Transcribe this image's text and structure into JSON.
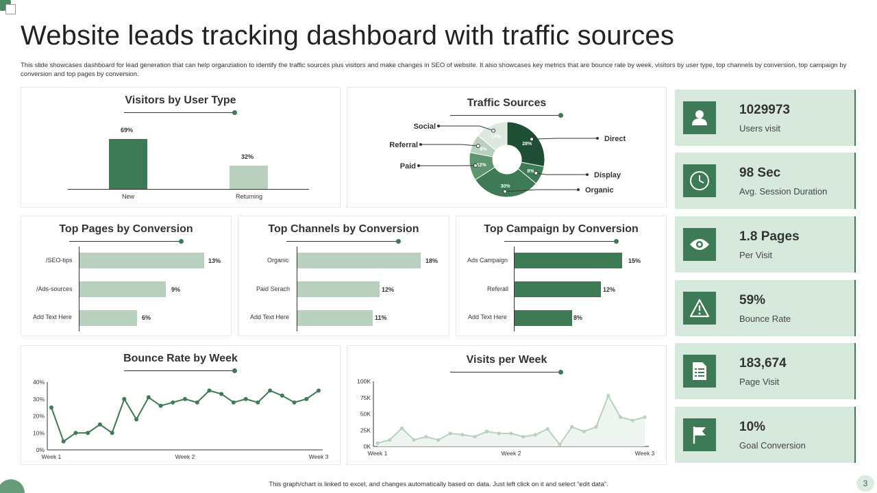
{
  "page": {
    "title": "Website leads tracking dashboard with traffic sources",
    "description": "This slide showcases dashboard for lead generation that can help organziation to identify the traffic sources plus visitors and make changes in SEO  of website. It also showcases key metrics that are bounce rate by week, visitors by user type, top channels by conversion, top campaign  by conversion and top pages by conversion.",
    "footer": "This graph/chart is linked to excel, and changes automatically based on data. Just left click on it and select “edit data”.",
    "page_number": "3"
  },
  "visitors": {
    "title": "Visitors by User Type",
    "items": [
      {
        "label": "New",
        "value_label": "69%"
      },
      {
        "label": "Returning",
        "value_label": "32%"
      }
    ]
  },
  "traffic": {
    "title": "Traffic Sources",
    "slices": [
      {
        "name": "Direct",
        "label": "28%"
      },
      {
        "name": "Display",
        "label": "8%"
      },
      {
        "name": "Organic",
        "label": "30%"
      },
      {
        "name": "Paid",
        "label": "12%"
      },
      {
        "name": "Referral",
        "label": "8%"
      },
      {
        "name": "Social",
        "label": "14%"
      }
    ]
  },
  "top_pages": {
    "title": "Top Pages by Conversion",
    "items": [
      {
        "label": "/SEO-tips",
        "value_label": "13%"
      },
      {
        "label": "/Ads-sources",
        "value_label": "9%"
      },
      {
        "label": "Add Text Here",
        "value_label": "6%"
      }
    ]
  },
  "top_channels": {
    "title": "Top Channels by Conversion",
    "items": [
      {
        "label": "Organic",
        "value_label": "18%"
      },
      {
        "label": "Paid Serach",
        "value_label": "12%"
      },
      {
        "label": "Add Text Here",
        "value_label": "11%"
      }
    ]
  },
  "top_campaign": {
    "title": "Top Campaign by Conversion",
    "items": [
      {
        "label": "Ads Campaign",
        "value_label": "15%"
      },
      {
        "label": "Referall",
        "value_label": "12%"
      },
      {
        "label": "Add Text Here",
        "value_label": "8%"
      }
    ]
  },
  "bounce": {
    "title": "Bounce Rate by Week",
    "y_ticks": [
      "0%",
      "10%",
      "20%",
      "30%",
      "40%"
    ],
    "x_ticks": [
      "Week 1",
      "Week 2",
      "Week 3"
    ]
  },
  "visits": {
    "title": "Visits per Week",
    "y_ticks": [
      "0K",
      "25K",
      "50K",
      "75K",
      "100K"
    ],
    "x_ticks": [
      "Week 1",
      "Week 2",
      "Week 3"
    ]
  },
  "kpis": [
    {
      "value": "1029973",
      "label": "Users visit",
      "icon": "user-icon"
    },
    {
      "value": "98 Sec",
      "label": "Avg. Session Duration",
      "icon": "clock-icon"
    },
    {
      "value": "1.8 Pages",
      "label": "Per Visit",
      "icon": "eye-icon"
    },
    {
      "value": "59%",
      "label": "Bounce Rate",
      "icon": "warning-icon"
    },
    {
      "value": "183,674",
      "label": "Page Visit",
      "icon": "document-icon"
    },
    {
      "value": "10%",
      "label": "Goal Conversion",
      "icon": "flag-icon"
    }
  ],
  "colors": {
    "dark_green": "#3d7a55",
    "mid_green": "#5e9470",
    "light_green": "#b9d0bf",
    "pale_green": "#d6e9dc"
  },
  "chart_data": [
    {
      "type": "bar",
      "title": "Visitors by User Type",
      "categories": [
        "New",
        "Returning"
      ],
      "values": [
        69,
        32
      ],
      "ylim": [
        0,
        75
      ]
    },
    {
      "type": "pie",
      "title": "Traffic Sources",
      "categories": [
        "Direct",
        "Display",
        "Organic",
        "Paid",
        "Referral",
        "Social"
      ],
      "values": [
        28,
        8,
        30,
        12,
        8,
        14
      ]
    },
    {
      "type": "bar",
      "title": "Top Pages by Conversion",
      "orientation": "horizontal",
      "categories": [
        "/SEO-tips",
        "/Ads-sources",
        "Add Text Here"
      ],
      "values": [
        13,
        9,
        6
      ],
      "xlim": [
        0,
        14
      ]
    },
    {
      "type": "bar",
      "title": "Top Channels by Conversion",
      "orientation": "horizontal",
      "categories": [
        "Organic",
        "Paid Serach",
        "Add Text Here"
      ],
      "values": [
        18,
        12,
        11
      ],
      "xlim": [
        0,
        19
      ]
    },
    {
      "type": "bar",
      "title": "Top Campaign by Conversion",
      "orientation": "horizontal",
      "categories": [
        "Ads Campaign",
        "Referall",
        "Add Text Here"
      ],
      "values": [
        15,
        12,
        8
      ],
      "xlim": [
        0,
        16
      ]
    },
    {
      "type": "line",
      "title": "Bounce Rate by Week",
      "xlabel": "",
      "ylabel": "",
      "ylim": [
        0,
        40
      ],
      "values": [
        25,
        5,
        10,
        10,
        15,
        10,
        30,
        18,
        31,
        26,
        28,
        30,
        28,
        35,
        33,
        28,
        30,
        28,
        35,
        32,
        28,
        30,
        35
      ]
    },
    {
      "type": "area",
      "title": "Visits per Week",
      "xlabel": "",
      "ylabel": "",
      "ylim": [
        0,
        100
      ],
      "values": [
        5,
        10,
        28,
        10,
        15,
        10,
        20,
        18,
        15,
        23,
        20,
        20,
        15,
        18,
        27,
        3,
        30,
        23,
        30,
        78,
        45,
        40,
        45
      ]
    }
  ]
}
